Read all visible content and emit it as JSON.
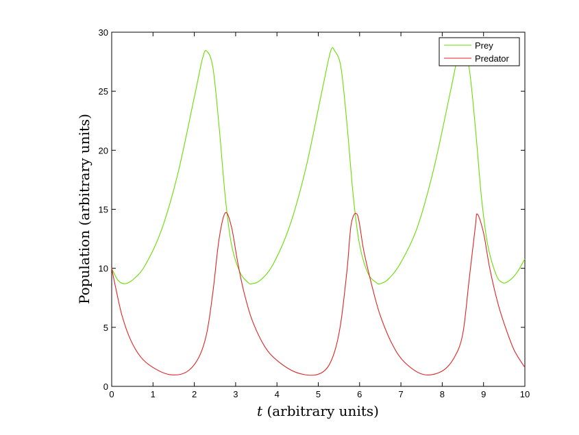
{
  "chart_data": {
    "type": "line",
    "xlabel_var": "t",
    "xlabel": "(arbitrary units)",
    "ylabel": "Population (arbitrary units)",
    "xlim": [
      0,
      10
    ],
    "ylim": [
      0,
      30
    ],
    "xticks": [
      0,
      1,
      2,
      3,
      4,
      5,
      6,
      7,
      8,
      9,
      10
    ],
    "yticks": [
      0,
      5,
      10,
      15,
      20,
      25,
      30
    ],
    "grid": false,
    "legend_position": "top-right",
    "series": [
      {
        "name": "Prey",
        "color": "#66dd00",
        "x": [
          0,
          0.15,
          0.3,
          0.5,
          0.8,
          1.2,
          1.6,
          2.0,
          2.2,
          2.3,
          2.45,
          2.6,
          2.75,
          2.9,
          3.1,
          3.3,
          3.4,
          3.6,
          3.9,
          4.3,
          4.7,
          5.1,
          5.3,
          5.4,
          5.55,
          5.7,
          5.85,
          6.0,
          6.2,
          6.4,
          6.5,
          6.7,
          7.0,
          7.4,
          7.8,
          8.2,
          8.4,
          8.5,
          8.65,
          8.8,
          8.95,
          9.1,
          9.3,
          9.45,
          9.6,
          9.8,
          10.0
        ],
        "values": [
          10.0,
          9.0,
          8.7,
          9.0,
          10.2,
          13.2,
          18.0,
          24.5,
          27.8,
          28.4,
          27.0,
          22.0,
          16.0,
          12.0,
          9.7,
          8.8,
          8.7,
          9.0,
          10.3,
          13.5,
          18.5,
          25.2,
          28.4,
          28.4,
          27.0,
          22.0,
          16.0,
          12.0,
          9.6,
          8.8,
          8.7,
          9.1,
          10.5,
          13.5,
          18.5,
          25.0,
          28.3,
          28.4,
          27.0,
          22.0,
          16.0,
          12.0,
          9.5,
          8.8,
          8.9,
          9.6,
          10.8
        ]
      },
      {
        "name": "Predator",
        "color": "#dd2222",
        "x": [
          0,
          0.1,
          0.25,
          0.45,
          0.7,
          1.0,
          1.4,
          1.8,
          2.1,
          2.3,
          2.45,
          2.6,
          2.75,
          2.9,
          3.05,
          3.2,
          3.4,
          3.7,
          4.0,
          4.45,
          4.9,
          5.2,
          5.4,
          5.55,
          5.7,
          5.8,
          5.95,
          6.1,
          6.3,
          6.5,
          6.8,
          7.1,
          7.55,
          8.0,
          8.3,
          8.5,
          8.65,
          8.8,
          8.85,
          9.0,
          9.15,
          9.35,
          9.55,
          9.75,
          10.0
        ],
        "values": [
          10.0,
          8.3,
          6.0,
          4.0,
          2.5,
          1.6,
          1.0,
          1.2,
          2.4,
          4.5,
          8.0,
          12.5,
          14.7,
          13.5,
          10.5,
          8.0,
          5.6,
          3.4,
          2.2,
          1.2,
          0.95,
          1.5,
          3.0,
          5.5,
          10.0,
          13.8,
          14.5,
          11.5,
          8.5,
          6.0,
          3.5,
          2.0,
          1.0,
          1.3,
          2.5,
          4.5,
          9.0,
          13.5,
          14.6,
          13.0,
          10.0,
          7.0,
          4.8,
          3.0,
          1.6
        ]
      }
    ]
  }
}
